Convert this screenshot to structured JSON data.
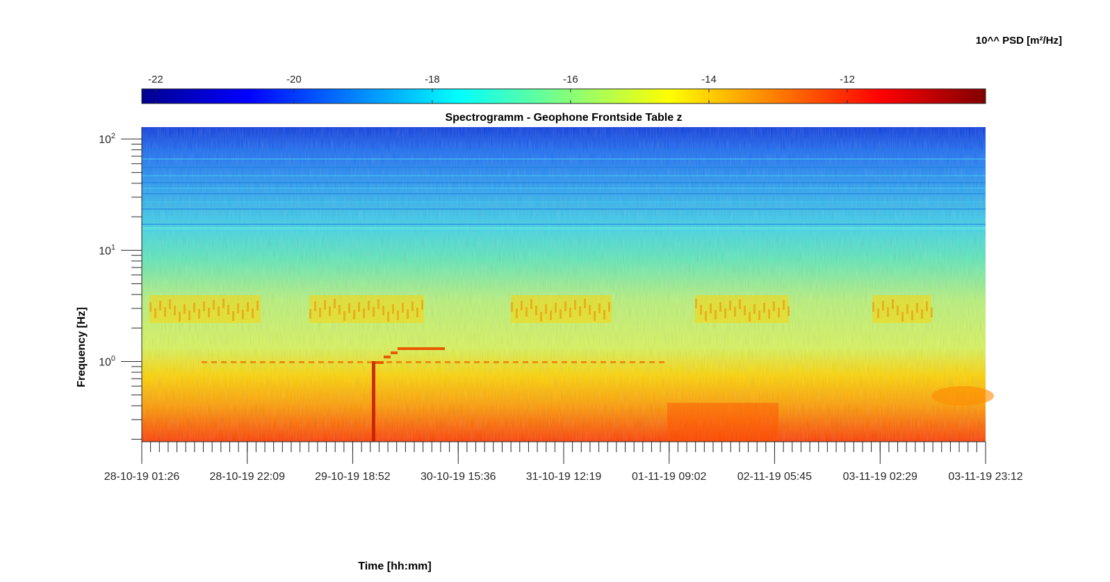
{
  "colorbar": {
    "label": "10^^ PSD [m²/Hz]",
    "range": [
      -22.2,
      -10.0
    ],
    "ticks": [
      "-22",
      "-20",
      "-18",
      "-16",
      "-14",
      "-12"
    ],
    "tick_values": [
      -22,
      -20,
      -18,
      -16,
      -14,
      -12
    ],
    "colormap": "jet"
  },
  "chart_data": {
    "type": "heatmap",
    "title": "Spectrogramm - Geophone Frontside Table z",
    "xlabel": "Time [hh:mm]",
    "ylabel": "Frequency [Hz]",
    "x_tick_labels": [
      "28-10-19 01:26",
      "28-10-19 22:09",
      "29-10-19 18:52",
      "30-10-19 15:36",
      "31-10-19 12:19",
      "01-11-19 09:02",
      "02-11-19 05:45",
      "03-11-19 02:29",
      "03-11-19 23:12"
    ],
    "x_tick_days": [
      0,
      0.863,
      1.726,
      2.59,
      3.453,
      4.316,
      5.179,
      6.043,
      6.906
    ],
    "xlim_days": [
      0,
      6.906
    ],
    "y_scale": "log",
    "ylim": [
      0.19,
      128
    ],
    "y_tick_labels": [
      {
        "base": "10",
        "exp": "2"
      },
      {
        "base": "10",
        "exp": "1"
      },
      {
        "base": "10",
        "exp": "0"
      }
    ],
    "y_tick_values": [
      100,
      10,
      1
    ],
    "description_bands": [
      {
        "freq_range": [
          16,
          128
        ],
        "psd_range": [
          -21,
          -19
        ]
      },
      {
        "freq_range": [
          5,
          16
        ],
        "psd_range": [
          -18.5,
          -17
        ]
      },
      {
        "freq_range": [
          1,
          5
        ],
        "psd_range": [
          -16.5,
          -14
        ]
      },
      {
        "freq_range": [
          0.19,
          0.7
        ],
        "psd_range": [
          -14.5,
          -12
        ]
      }
    ],
    "colors": {
      "low": "#00008f",
      "high": "#800000"
    }
  }
}
